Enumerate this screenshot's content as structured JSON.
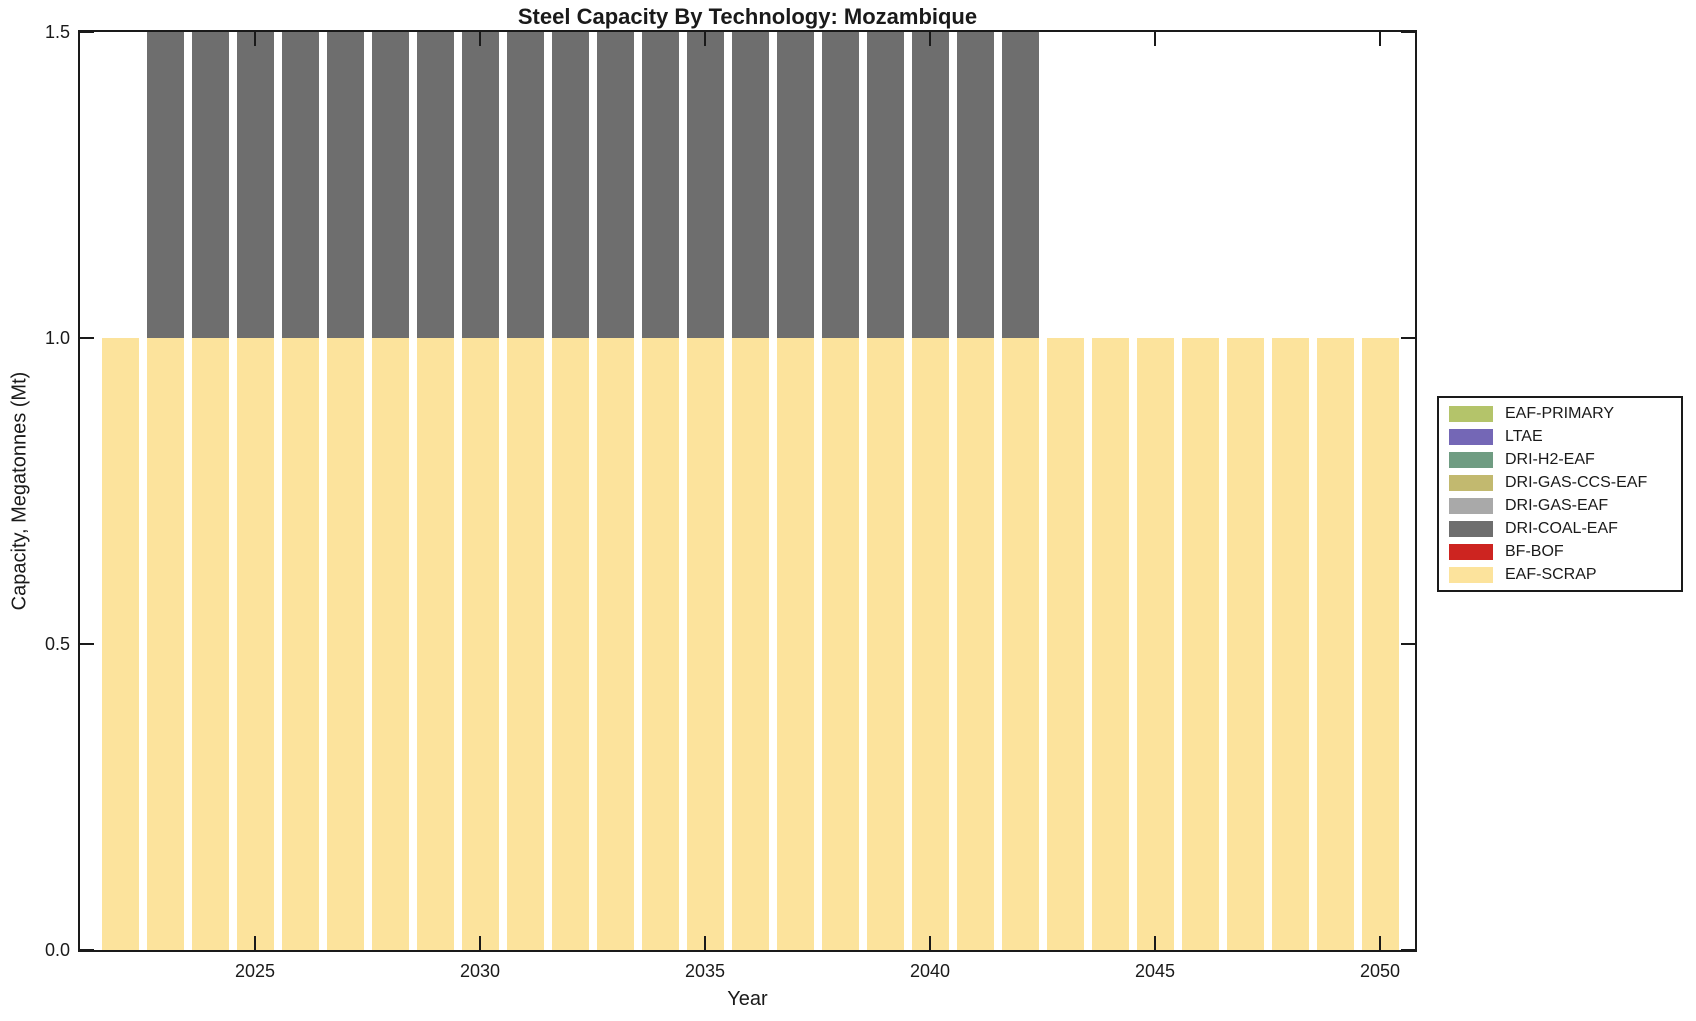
{
  "figure": {
    "title": "Steel Capacity By Technology: Mozambique",
    "xlabel": "Year",
    "ylabel": "Capacity, Megatonnes (Mt)"
  },
  "colors": {
    "axis": "#1a1a1a",
    "background": "#ffffff",
    "eaf_scrap": "#fce39c",
    "dri_coal_eaf": "#6e6e6e"
  },
  "legend": {
    "items": [
      {
        "label": "EAF-PRIMARY",
        "color": "#b4c46a"
      },
      {
        "label": "LTAE",
        "color": "#7467b6"
      },
      {
        "label": "DRI-H2-EAF",
        "color": "#6f9c82"
      },
      {
        "label": "DRI-GAS-CCS-EAF",
        "color": "#c2b96f"
      },
      {
        "label": "DRI-GAS-EAF",
        "color": "#a9a9a9"
      },
      {
        "label": "DRI-COAL-EAF",
        "color": "#6e6e6e"
      },
      {
        "label": "BF-BOF",
        "color": "#cd2420"
      },
      {
        "label": "EAF-SCRAP",
        "color": "#fce39c"
      }
    ]
  },
  "chart_data": {
    "type": "bar",
    "stacked": true,
    "title": "Steel Capacity By Technology: Mozambique",
    "xlabel": "Year",
    "ylabel": "Capacity, Megatonnes (Mt)",
    "x": [
      2022,
      2023,
      2024,
      2025,
      2026,
      2027,
      2028,
      2029,
      2030,
      2031,
      2032,
      2033,
      2034,
      2035,
      2036,
      2037,
      2038,
      2039,
      2040,
      2041,
      2042,
      2043,
      2044,
      2045,
      2046,
      2047,
      2048,
      2049,
      2050
    ],
    "series": [
      {
        "name": "EAF-SCRAP",
        "color": "#fce39c",
        "values": [
          1.0,
          1.0,
          1.0,
          1.0,
          1.0,
          1.0,
          1.0,
          1.0,
          1.0,
          1.0,
          1.0,
          1.0,
          1.0,
          1.0,
          1.0,
          1.0,
          1.0,
          1.0,
          1.0,
          1.0,
          1.0,
          1.0,
          1.0,
          1.0,
          1.0,
          1.0,
          1.0,
          1.0,
          1.0
        ]
      },
      {
        "name": "DRI-COAL-EAF",
        "color": "#6e6e6e",
        "values": [
          0,
          0.5,
          0.5,
          0.5,
          0.5,
          0.5,
          0.5,
          0.5,
          0.5,
          0.5,
          0.5,
          0.5,
          0.5,
          0.5,
          0.5,
          0.5,
          0.5,
          0.5,
          0.5,
          0.5,
          0.5,
          0,
          0,
          0,
          0,
          0,
          0,
          0,
          0
        ]
      }
    ],
    "ylim": [
      0,
      1.5
    ],
    "yticks": {
      "values": [
        0,
        0.5,
        1.0,
        1.5
      ],
      "labels": [
        "0.0",
        "0.5",
        "1.0",
        "1.5"
      ]
    },
    "xticks": {
      "values": [
        2025,
        2030,
        2035,
        2040,
        2045,
        2050
      ],
      "labels": [
        "2025",
        "2030",
        "2035",
        "2040",
        "2045",
        "2050"
      ]
    },
    "grid": false,
    "legend_position": "right-outside",
    "legend_entries": [
      "EAF-PRIMARY",
      "LTAE",
      "DRI-H2-EAF",
      "DRI-GAS-CCS-EAF",
      "DRI-GAS-EAF",
      "DRI-COAL-EAF",
      "BF-BOF",
      "EAF-SCRAP"
    ]
  }
}
